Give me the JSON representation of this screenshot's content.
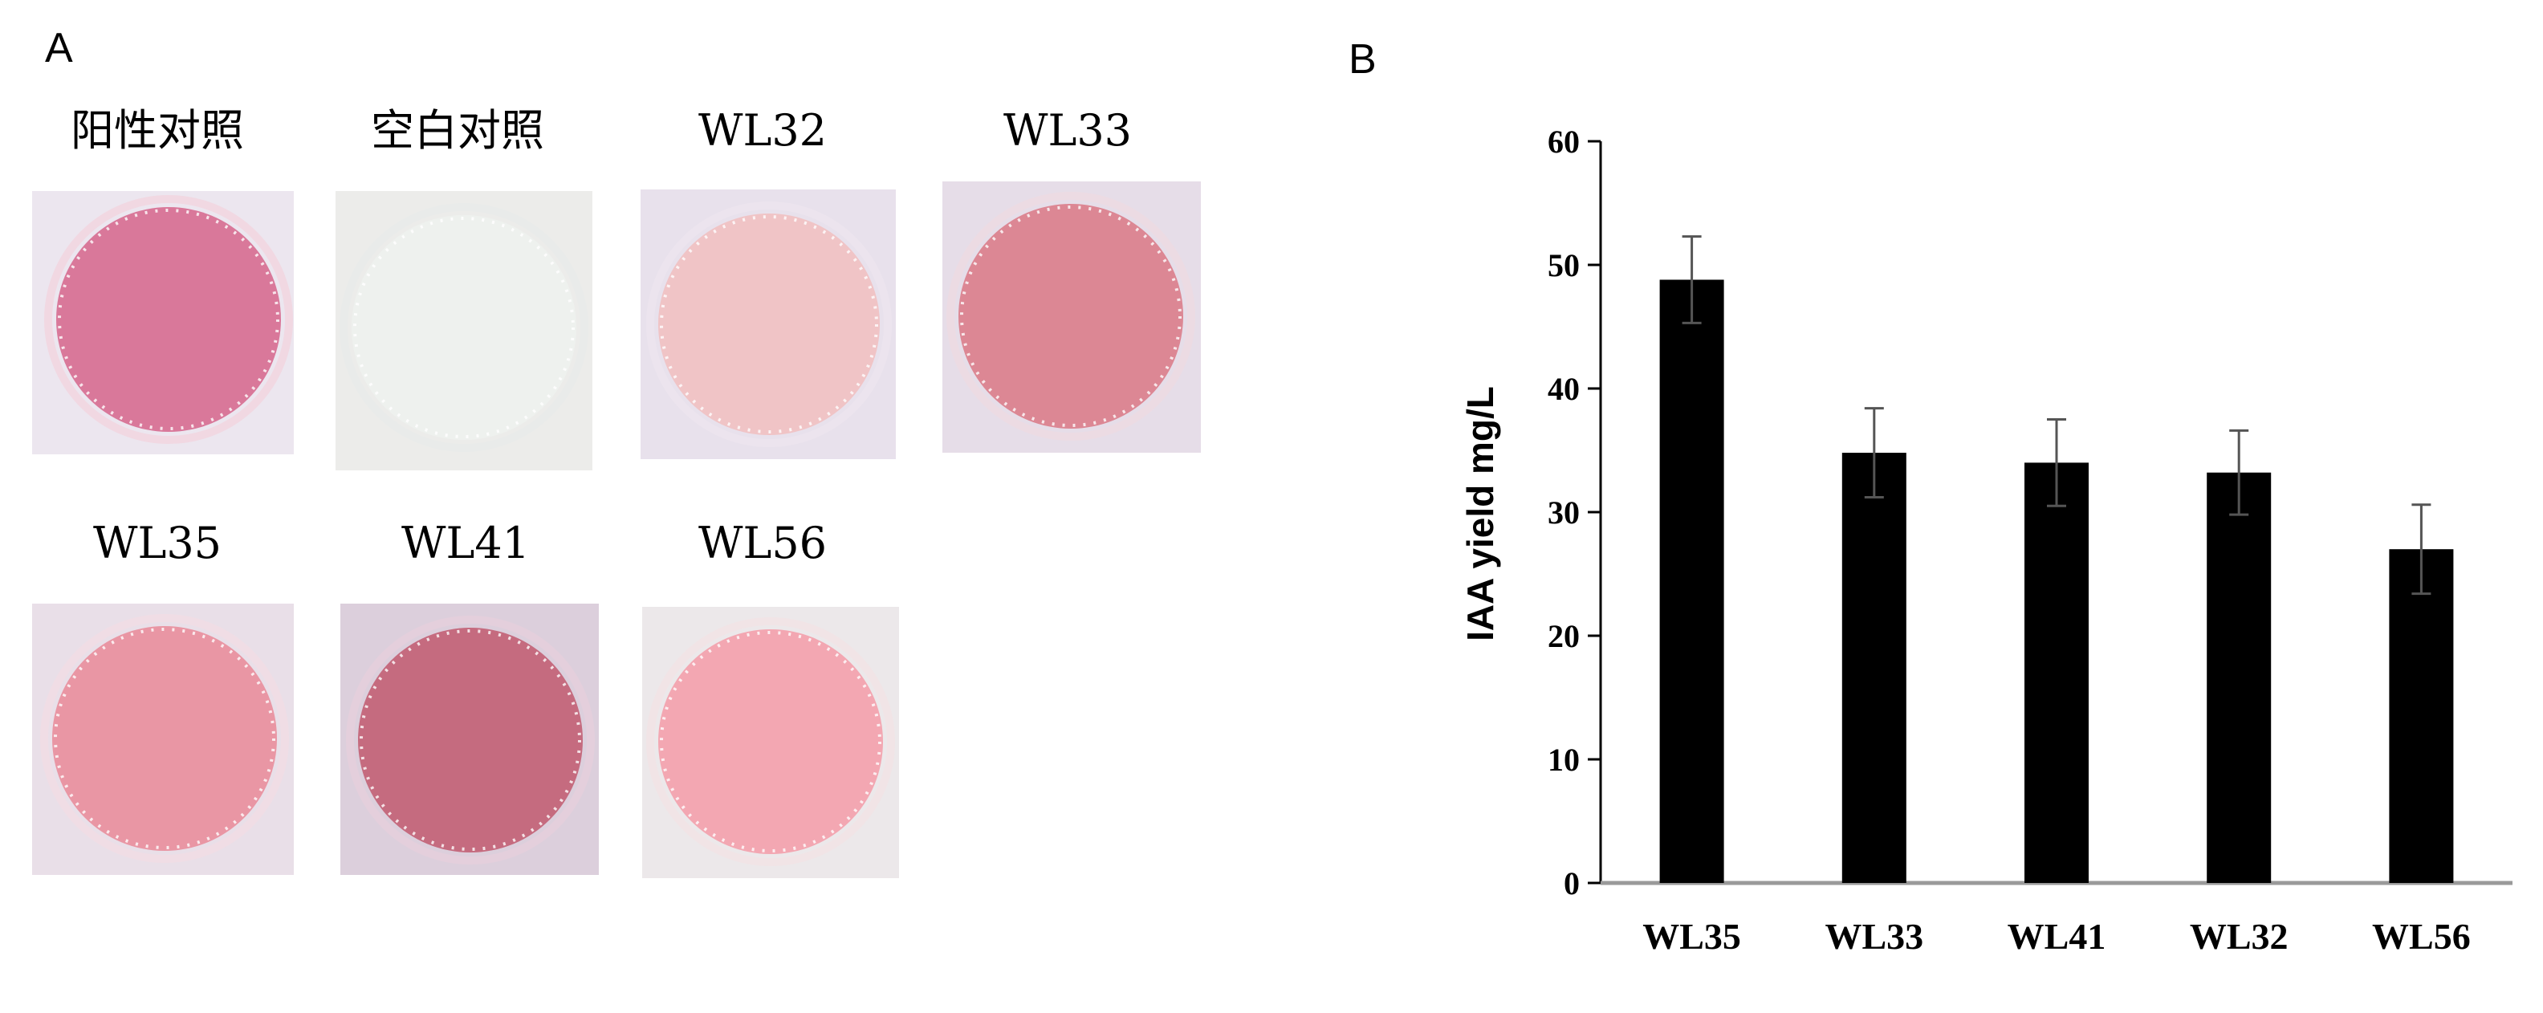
{
  "panels": {
    "a_label": "A",
    "b_label": "B"
  },
  "panel_a": {
    "wells": [
      {
        "label": "阳性对照",
        "color": "#d9789a",
        "edge": "#f1d8e2",
        "bg": "#ece6ef"
      },
      {
        "label": "空白对照",
        "color": "#eef1ee",
        "edge": "#e9ebea",
        "bg": "#ececea"
      },
      {
        "label": "WL32",
        "color": "#f0c4c6",
        "edge": "#ece4ee",
        "bg": "#e8e1ec"
      },
      {
        "label": "WL33",
        "color": "#dc8794",
        "edge": "#ecdbe3",
        "bg": "#e6dde8"
      },
      {
        "label": "WL35",
        "color": "#e996a4",
        "edge": "#f0dde5",
        "bg": "#e9dfe8"
      },
      {
        "label": "WL41",
        "color": "#c56b7f",
        "edge": "#e4cfdc",
        "bg": "#dccfdc"
      },
      {
        "label": "WL56",
        "color": "#f3a7b2",
        "edge": "#f1e4e6",
        "bg": "#ece8ea"
      }
    ]
  },
  "chart_data": {
    "type": "bar",
    "categories": [
      "WL35",
      "WL33",
      "WL41",
      "WL32",
      "WL56"
    ],
    "values": [
      48.8,
      34.8,
      34.0,
      33.2,
      27.0
    ],
    "errors": [
      3.5,
      3.6,
      3.5,
      3.4,
      3.6
    ],
    "ylabel": "IAA yield  mg/L",
    "xlabel": "",
    "ylim": [
      0,
      60
    ],
    "yticks": [
      0,
      10,
      20,
      30,
      40,
      50,
      60
    ],
    "bar_color": "#000000",
    "error_bar_color": "#555555",
    "grid": false
  }
}
